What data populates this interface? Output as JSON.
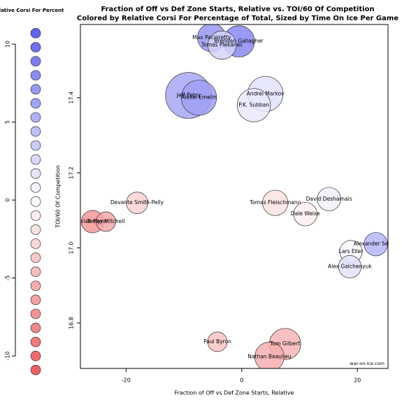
{
  "chart_data": {
    "type": "scatter",
    "title": "Fraction of Off vs Def Zone Starts, Relative vs. TOI/60 Of Competition",
    "subtitle": "Colored by Relative Corsi For Percentage of Total, Sized by Time On Ice Per Game",
    "x_label": "Fraction of Off vs Def Zone Starts, Relative",
    "y_label": "TOI/60 Of Competition",
    "watermark": "war-on-ice.com",
    "xlim": [
      -27.9,
      25.3
    ],
    "ylim": [
      16.679,
      17.595
    ],
    "xticks": [
      -20,
      0,
      20
    ],
    "yticks": [
      16.8,
      {
        "value": 17,
        "label": "17.0"
      },
      17.2,
      17.4
    ],
    "color_scale": {
      "high": "#5a5aee",
      "mid": "#ffffff",
      "low": "#ee5a5a"
    },
    "series": [
      {
        "labels": [
          "Max Pacioretty",
          "Brendan Gallagher",
          "Tomas Plekanec",
          "Jeff Petry",
          "Alexei Emelin",
          "Andrei Markov",
          "P.K. Subban",
          "Devante Smith-Pelly",
          "Brian Flynn",
          "Torrey Mitchell",
          "Tomas Fleischmann",
          "Dale Weise",
          "David Desharnais",
          "Alexander Semin",
          "Lars Eller",
          "Alex Galchenyuk",
          "Paul Byron",
          "Tom Gilbert",
          "Nathan Beaulieu"
        ],
        "x": [
          -5.2,
          -0.5,
          -3.4,
          -9.2,
          -7.4,
          4.1,
          2.1,
          -18.1,
          -25.8,
          -23.5,
          5.8,
          11.0,
          15.1,
          23.2,
          18.9,
          18.7,
          -4.2,
          7.5,
          4.8
        ],
        "values": [
          17.56,
          17.55,
          17.54,
          17.406,
          17.4,
          17.41,
          17.38,
          17.12,
          17.07,
          17.07,
          17.12,
          17.09,
          17.13,
          17.01,
          16.99,
          16.95,
          16.75,
          16.744,
          16.71
        ],
        "size": [
          14.5,
          16,
          14.5,
          23.5,
          18,
          18,
          17,
          11,
          11.5,
          10,
          13,
          12,
          12,
          12,
          11.5,
          11.5,
          10,
          16,
          15
        ],
        "corsi": [
          7,
          8,
          3,
          6,
          6.5,
          2,
          1.5,
          -3,
          -7,
          -6,
          -2,
          -1,
          1,
          5,
          0.5,
          2,
          -4,
          -5,
          -5.5
        ]
      }
    ],
    "legend": {
      "title": "Relative Corsi For Percent",
      "ylim": [
        -10.8,
        11.26
      ],
      "yticks": [
        10,
        5,
        0,
        -5,
        -10
      ],
      "values": [
        10.7,
        9.8,
        8.9,
        8.0,
        7.1,
        6.2,
        5.3,
        4.4,
        3.5,
        2.6,
        1.7,
        0.8,
        -0.1,
        -1.0,
        -1.9,
        -2.8,
        -3.7,
        -4.6,
        -5.5,
        -6.4,
        -7.3,
        -8.2,
        -9.1,
        -10.0,
        -10.9
      ]
    }
  }
}
